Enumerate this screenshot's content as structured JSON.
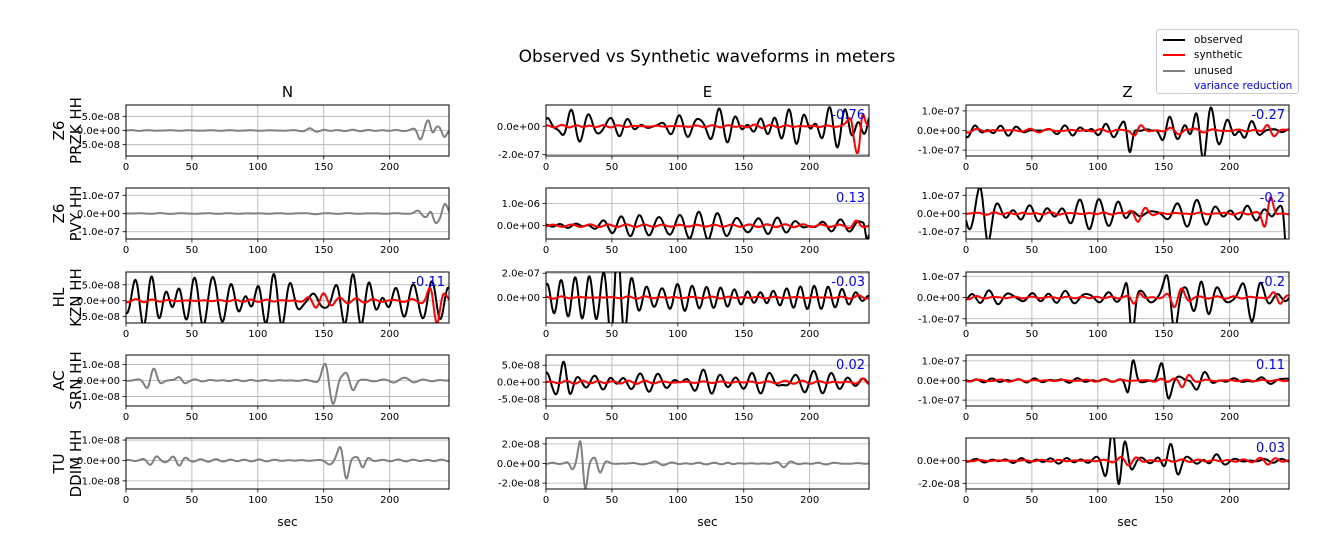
{
  "title": "Observed vs Synthetic waveforms in meters",
  "columns": [
    "N",
    "E",
    "Z"
  ],
  "xlabel": "sec",
  "xlim": [
    0,
    245
  ],
  "xticks": [
    0,
    50,
    100,
    150,
    200
  ],
  "colors": {
    "observed": "#000000",
    "synthetic": "#ff0000",
    "unused": "#808080",
    "vr": "#0000ff",
    "grid": "#b0b0b0"
  },
  "legend": {
    "observed": "observed",
    "synthetic": "synthetic",
    "unused": "unused",
    "vr": "variance reduction"
  },
  "stations": [
    {
      "line1": "Z6",
      "line2": "PRZK HH"
    },
    {
      "line1": "Z6",
      "line2": "PVY HH"
    },
    {
      "line1": "HL",
      "line2": "KZN HH"
    },
    {
      "line1": "AC",
      "line2": "SRN HH"
    },
    {
      "line1": "TU",
      "line2": "DDIM HH"
    }
  ],
  "chart_data": {
    "type": "line",
    "panels": [
      {
        "row": 0,
        "col": 0,
        "status": "unused",
        "vr": "",
        "ylim": [
          -9e-08,
          9e-08
        ],
        "yticks": [
          {
            "v": 5e-08,
            "label": "5.0e-08"
          },
          {
            "v": 0,
            "label": "0.0e+00"
          },
          {
            "v": -5e-08,
            "label": "-5.0e-08"
          }
        ],
        "obs": {
          "base": 1e-09,
          "events": [
            [
              140,
              4e-09,
              5
            ],
            [
              150,
              2e-09,
              4
            ],
            [
              225,
              2.5e-08,
              5
            ],
            [
              232,
              8e-08,
              4
            ],
            [
              240,
              3e-08,
              4
            ]
          ]
        }
      },
      {
        "row": 0,
        "col": 1,
        "status": "used",
        "vr": "-0.76",
        "ylim": [
          -2.1e-07,
          1.5e-07
        ],
        "yticks": [
          {
            "v": 0,
            "label": "0.0e+00"
          },
          {
            "v": -2e-07,
            "label": "-2.0e-07"
          }
        ],
        "obs": {
          "base": 8e-08,
          "events": [
            [
              15,
              4e-08,
              8
            ],
            [
              60,
              3e-08,
              12
            ],
            [
              130,
              2e-08,
              15
            ],
            [
              190,
              2e-08,
              15
            ]
          ]
        },
        "syn": {
          "base": 4e-09,
          "events": [
            [
              150,
              1e-08,
              15
            ],
            [
              232,
              2.3e-07,
              4
            ],
            [
              238,
              1.4e-07,
              3
            ]
          ]
        }
      },
      {
        "row": 0,
        "col": 2,
        "status": "used",
        "vr": "-0.27",
        "ylim": [
          -1.3e-07,
          1.3e-07
        ],
        "yticks": [
          {
            "v": 1e-07,
            "label": "1.0e-07"
          },
          {
            "v": 0,
            "label": "0.0e+00"
          },
          {
            "v": -1e-07,
            "label": "-1.0e-07"
          }
        ],
        "obs": {
          "base": 1.5e-08,
          "events": [
            [
              125,
              1.4e-07,
              4
            ],
            [
              150,
              7e-08,
              8
            ],
            [
              175,
              7e-08,
              12
            ],
            [
              210,
              5e-08,
              12
            ]
          ]
        },
        "syn": {
          "base": 4e-09,
          "events": [
            [
              130,
              2.5e-08,
              5
            ],
            [
              165,
              1.5e-08,
              12
            ],
            [
              230,
              3e-08,
              6
            ]
          ]
        }
      },
      {
        "row": 1,
        "col": 0,
        "status": "unused",
        "vr": "",
        "ylim": [
          -1.4e-07,
          1.4e-07
        ],
        "yticks": [
          {
            "v": 1e-07,
            "label": "1.0e-07"
          },
          {
            "v": 0,
            "label": "0.0e+00"
          },
          {
            "v": -1e-07,
            "label": "-1.0e-07"
          }
        ],
        "obs": {
          "base": 1e-09,
          "events": [
            [
              140,
              5e-09,
              5
            ],
            [
              225,
              3e-08,
              5
            ],
            [
              232,
              1.4e-07,
              4
            ],
            [
              240,
              6e-08,
              4
            ]
          ]
        }
      },
      {
        "row": 1,
        "col": 1,
        "status": "used",
        "vr": "0.13",
        "ylim": [
          -6e-07,
          1.7e-06
        ],
        "yticks": [
          {
            "v": 1e-06,
            "label": "1.0e-06"
          },
          {
            "v": 0,
            "label": "0.0e+00"
          }
        ],
        "obs": {
          "base": 2.5e-07,
          "events": [
            [
              30,
              1.5e-07,
              10
            ],
            [
              243,
              1.6e-06,
              2
            ]
          ]
        },
        "syn": {
          "base": 5e-08,
          "events": [
            [
              235,
              2.5e-07,
              5
            ]
          ]
        }
      },
      {
        "row": 1,
        "col": 2,
        "status": "used",
        "vr": "-0.2",
        "ylim": [
          -1.4e-07,
          1.4e-07
        ],
        "yticks": [
          {
            "v": 1e-07,
            "label": "1.0e-07"
          },
          {
            "v": 0,
            "label": "0.0e+00"
          },
          {
            "v": -1e-07,
            "label": "-1.0e-07"
          }
        ],
        "obs": {
          "base": 4e-08,
          "events": [
            [
              15,
              5e-08,
              6
            ],
            [
              120,
              6e-08,
              8
            ],
            [
              243,
              1.4e-07,
              3
            ]
          ]
        },
        "syn": {
          "base": 4e-09,
          "events": [
            [
              130,
              2e-08,
              8
            ],
            [
              230,
              7e-08,
              5
            ]
          ]
        }
      },
      {
        "row": 2,
        "col": 0,
        "status": "used",
        "vr": "-0.11",
        "ylim": [
          -7e-08,
          9e-08
        ],
        "yticks": [
          {
            "v": 5e-08,
            "label": "5.0e-08"
          },
          {
            "v": 0,
            "label": "0.0e+00"
          },
          {
            "v": -5e-08,
            "label": "-5.0e-08"
          }
        ],
        "obs": {
          "base": 5e-08,
          "events": [
            [
              65,
              3e-08,
              10
            ],
            [
              150,
              1.5e-08,
              15
            ]
          ]
        },
        "syn": {
          "base": 4e-09,
          "events": [
            [
              145,
              1.2e-08,
              10
            ],
            [
              235,
              4e-08,
              6
            ]
          ]
        }
      },
      {
        "row": 2,
        "col": 1,
        "status": "used",
        "vr": "-0.03",
        "ylim": [
          -2.1e-07,
          2.1e-07
        ],
        "yticks": [
          {
            "v": 2e-07,
            "label": "2.0e-07"
          },
          {
            "v": 0,
            "label": "0.0e+00"
          }
        ],
        "obs": {
          "base": 8e-08,
          "events": [
            [
              55,
              1.3e-07,
              8
            ],
            [
              100,
              5e-08,
              10
            ]
          ]
        },
        "syn": {
          "base": 5e-09,
          "events": [
            [
              240,
              1.5e-08,
              6
            ]
          ]
        }
      },
      {
        "row": 2,
        "col": 2,
        "status": "used",
        "vr": "-0.2",
        "ylim": [
          -1.2e-07,
          1.2e-07
        ],
        "yticks": [
          {
            "v": 1e-07,
            "label": "1.0e-07"
          },
          {
            "v": 0,
            "label": "0.0e+00"
          },
          {
            "v": -1e-07,
            "label": "-1.0e-07"
          }
        ],
        "obs": {
          "base": 1.5e-08,
          "events": [
            [
              125,
              1.1e-07,
              4
            ],
            [
              155,
              1e-07,
              6
            ],
            [
              180,
              5e-08,
              10
            ],
            [
              215,
              4e-08,
              10
            ]
          ]
        },
        "syn": {
          "base": 4e-09,
          "events": [
            [
              130,
              4e-08,
              5
            ],
            [
              160,
              3e-08,
              8
            ],
            [
              235,
              2.5e-08,
              6
            ]
          ]
        }
      },
      {
        "row": 3,
        "col": 0,
        "status": "unused",
        "vr": "",
        "ylim": [
          -1.6e-08,
          1.6e-08
        ],
        "yticks": [
          {
            "v": 1e-08,
            "label": "1.0e-08"
          },
          {
            "v": 0,
            "label": "0.0e+00"
          },
          {
            "v": -1e-08,
            "label": "-1.0e-08"
          }
        ],
        "obs": {
          "base": 3e-10,
          "events": [
            [
              20,
              3e-09,
              6
            ],
            [
              40,
              2e-09,
              5
            ],
            [
              155,
              1.6e-08,
              6
            ],
            [
              170,
              5e-09,
              5
            ],
            [
              210,
              1.5e-09,
              8
            ]
          ]
        }
      },
      {
        "row": 3,
        "col": 1,
        "status": "used",
        "vr": "0.02",
        "ylim": [
          -7e-08,
          8e-08
        ],
        "yticks": [
          {
            "v": 5e-08,
            "label": "5.0e-08"
          },
          {
            "v": 0,
            "label": "0.0e+00"
          },
          {
            "v": -5e-08,
            "label": "-5.0e-08"
          }
        ],
        "obs": {
          "base": 2e-08,
          "events": [
            [
              15,
              6e-08,
              6
            ],
            [
              50,
              2e-08,
              10
            ],
            [
              120,
              1.5e-08,
              12
            ],
            [
              170,
              1.5e-08,
              15
            ]
          ]
        },
        "syn": {
          "base": 3e-09,
          "events": [
            [
              150,
              8e-09,
              10
            ],
            [
              240,
              8e-09,
              5
            ]
          ]
        }
      },
      {
        "row": 3,
        "col": 2,
        "status": "used",
        "vr": "0.11",
        "ylim": [
          -1.3e-07,
          1.3e-07
        ],
        "yticks": [
          {
            "v": 1e-07,
            "label": "1.0e-07"
          },
          {
            "v": 0,
            "label": "0.0e+00"
          },
          {
            "v": -1e-07,
            "label": "-1.0e-07"
          }
        ],
        "obs": {
          "base": 1e-08,
          "events": [
            [
              125,
              1.2e-07,
              4
            ],
            [
              150,
              7e-08,
              6
            ],
            [
              175,
              3e-08,
              10
            ]
          ]
        },
        "syn": {
          "base": 3e-09,
          "events": [
            [
              150,
              1.5e-08,
              8
            ],
            [
              165,
              2.5e-08,
              6
            ]
          ]
        }
      },
      {
        "row": 4,
        "col": 0,
        "status": "unused",
        "vr": "",
        "ylim": [
          -1.4e-08,
          1.1e-08
        ],
        "yticks": [
          {
            "v": 1e-08,
            "label": "1.0e-08"
          },
          {
            "v": 0,
            "label": "0.0e+00"
          },
          {
            "v": -1e-08,
            "label": "-1.0e-08"
          }
        ],
        "obs": {
          "base": 3e-10,
          "events": [
            [
              20,
              1e-09,
              6
            ],
            [
              40,
              1.5e-09,
              6
            ],
            [
              155,
              5e-09,
              5
            ],
            [
              165,
              1.3e-08,
              5
            ],
            [
              180,
              5e-09,
              5
            ]
          ]
        }
      },
      {
        "row": 4,
        "col": 1,
        "status": "unused",
        "vr": "",
        "ylim": [
          -2.6e-08,
          2.6e-08
        ],
        "yticks": [
          {
            "v": 2e-08,
            "label": "2.0e-08"
          },
          {
            "v": 0,
            "label": "0.0e+00"
          },
          {
            "v": -2e-08,
            "label": "-2.0e-08"
          }
        ],
        "obs": {
          "base": 5e-10,
          "events": [
            [
              20,
              5e-09,
              4
            ],
            [
              28,
              2.4e-08,
              4
            ],
            [
              40,
              6e-09,
              5
            ],
            [
              80,
              1.5e-09,
              8
            ],
            [
              140,
              2e-09,
              6
            ],
            [
              180,
              1.5e-09,
              6
            ]
          ]
        }
      },
      {
        "row": 4,
        "col": 2,
        "status": "used",
        "vr": "0.03",
        "ylim": [
          -2.5e-08,
          2e-08
        ],
        "yticks": [
          {
            "v": 0,
            "label": "0.0e+00"
          },
          {
            "v": -2e-08,
            "label": "-2.0e-08"
          }
        ],
        "obs": {
          "base": 1e-09,
          "events": [
            [
              115,
              2e-08,
              8
            ],
            [
              155,
              1e-08,
              8
            ],
            [
              185,
              5e-09,
              10
            ]
          ]
        },
        "syn": {
          "base": 5e-10,
          "events": [
            [
              125,
              2e-09,
              10
            ],
            [
              230,
              1e-09,
              8
            ]
          ]
        }
      }
    ]
  }
}
